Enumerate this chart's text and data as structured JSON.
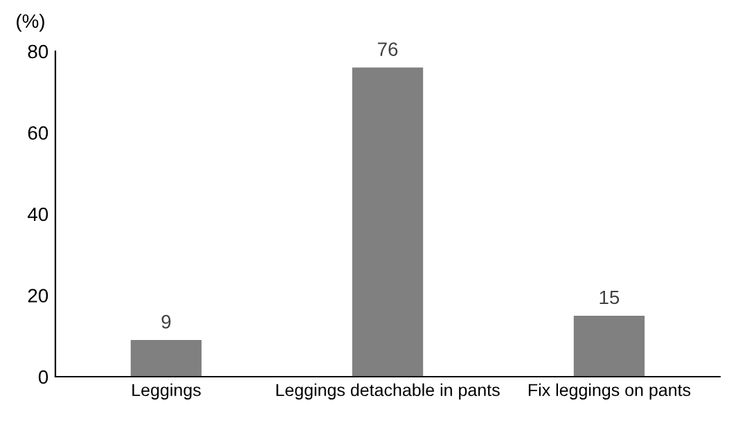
{
  "chart_data": {
    "type": "bar",
    "ylabel": "(%)",
    "categories": [
      "Leggings",
      "Leggings detachable in pants",
      "Fix leggings on pants"
    ],
    "values": [
      9,
      76,
      15
    ],
    "color": "#808080",
    "ylim": [
      0,
      80
    ],
    "yticks": [
      0,
      20,
      40,
      60,
      80
    ],
    "grid": false,
    "data_labels": true
  }
}
